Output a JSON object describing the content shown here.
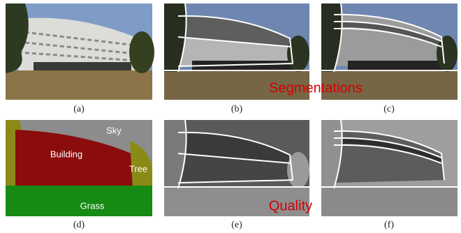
{
  "panels": [
    {
      "label": "(a)"
    },
    {
      "label": "(b)"
    },
    {
      "label": "(c)"
    },
    {
      "label": "(d)"
    },
    {
      "label": "(e)"
    },
    {
      "label": "(f)"
    }
  ],
  "annotations": {
    "segmentations": "Segmentations",
    "quality": "Quality"
  },
  "regions": {
    "sky": "Sky",
    "building": "Building",
    "tree": "Tree",
    "grass": "Grass"
  }
}
